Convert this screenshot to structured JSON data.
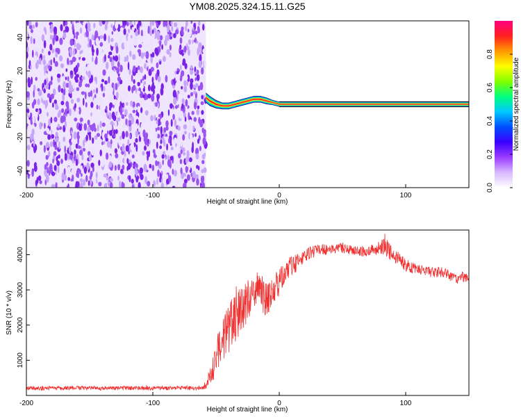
{
  "figure_title": "YM08.2025.324.15.11.G25",
  "colors": {
    "snr_line": "#f03030",
    "frame": "#000000",
    "noise_palette": [
      "#7a22e6",
      "#9a52f0",
      "#c7a6fa",
      "#ece2fd"
    ],
    "colormap": [
      "#ffffff",
      "#d8b8ff",
      "#9b3cff",
      "#3a00ff",
      "#0050ff",
      "#00c8ff",
      "#00ff80",
      "#80ff00",
      "#ffff00",
      "#ff9900",
      "#ff2020",
      "#ff0080"
    ]
  },
  "chart_data": [
    {
      "type": "heatmap",
      "title": "",
      "xlabel": "Height of straight line (km)",
      "ylabel": "Frequency (Hz)",
      "xlim": [
        -200,
        150
      ],
      "ylim": [
        -50,
        50
      ],
      "x_ticks": [
        "-200",
        "-100",
        "0",
        "100"
      ],
      "x_tick_values": [
        -200,
        -100,
        0,
        100
      ],
      "y_ticks": [
        "-40",
        "-20",
        "0",
        "20",
        "40"
      ],
      "y_tick_values": [
        -40,
        -20,
        0,
        20,
        40
      ],
      "noise_region": {
        "x_range": [
          -200,
          -58
        ],
        "freq_range": [
          -50,
          50
        ],
        "amplitude": "low (0.05-0.2)"
      },
      "signal_ridge": {
        "x": [
          -58,
          -55,
          -50,
          -45,
          -40,
          -35,
          -30,
          -25,
          -20,
          -15,
          -10,
          -5,
          0,
          150
        ],
        "freq": [
          4,
          2,
          0,
          -1,
          -1,
          0,
          1,
          2,
          3,
          3,
          2,
          1,
          0,
          0
        ],
        "half_width_hz": [
          3,
          3,
          2.5,
          2,
          2,
          2,
          2,
          2,
          2,
          2,
          2,
          1.5,
          1.5,
          1.5
        ]
      },
      "colorbar": {
        "label": "Normalized spectral amplitude",
        "range": [
          0,
          1
        ],
        "ticks": [
          "0.0",
          "0.2",
          "0.4",
          "0.6",
          "0.8"
        ],
        "tick_values": [
          0,
          0.2,
          0.4,
          0.6,
          0.8
        ]
      }
    },
    {
      "type": "line",
      "title": "",
      "xlabel": "Height of straight line (km)",
      "ylabel": "SNR (10 * v/v)",
      "xlim": [
        -200,
        150
      ],
      "ylim": [
        0,
        4700
      ],
      "x_ticks": [
        "-200",
        "-100",
        "0",
        "100"
      ],
      "x_tick_values": [
        -200,
        -100,
        0,
        100
      ],
      "y_ticks": [
        "1000",
        "2000",
        "3000",
        "4000"
      ],
      "y_tick_values": [
        1000,
        2000,
        3000,
        4000
      ],
      "series": [
        {
          "x": [
            -200,
            -180,
            -160,
            -140,
            -120,
            -100,
            -80,
            -60,
            -55,
            -50,
            -45,
            -40,
            -35,
            -30,
            -25,
            -20,
            -15,
            -10,
            -5,
            0,
            5,
            10,
            15,
            20,
            25,
            30,
            40,
            50,
            60,
            70,
            80,
            85,
            90,
            95,
            100,
            110,
            120,
            130,
            140,
            150
          ],
          "y": [
            200,
            210,
            215,
            205,
            210,
            205,
            215,
            200,
            500,
            1100,
            1600,
            1900,
            2200,
            2500,
            2700,
            2800,
            3000,
            2700,
            3000,
            3200,
            3500,
            3700,
            3800,
            4000,
            4050,
            4150,
            4150,
            4200,
            4100,
            4100,
            4200,
            4200,
            4000,
            3900,
            3700,
            3600,
            3500,
            3500,
            3300,
            3400
          ],
          "noise_amplitude": [
            60,
            60,
            60,
            60,
            60,
            60,
            60,
            60,
            300,
            500,
            600,
            700,
            700,
            700,
            600,
            500,
            500,
            500,
            400,
            400,
            300,
            300,
            250,
            200,
            200,
            150,
            150,
            150,
            150,
            150,
            200,
            300,
            200,
            200,
            180,
            150,
            150,
            150,
            150,
            150
          ]
        }
      ]
    }
  ]
}
